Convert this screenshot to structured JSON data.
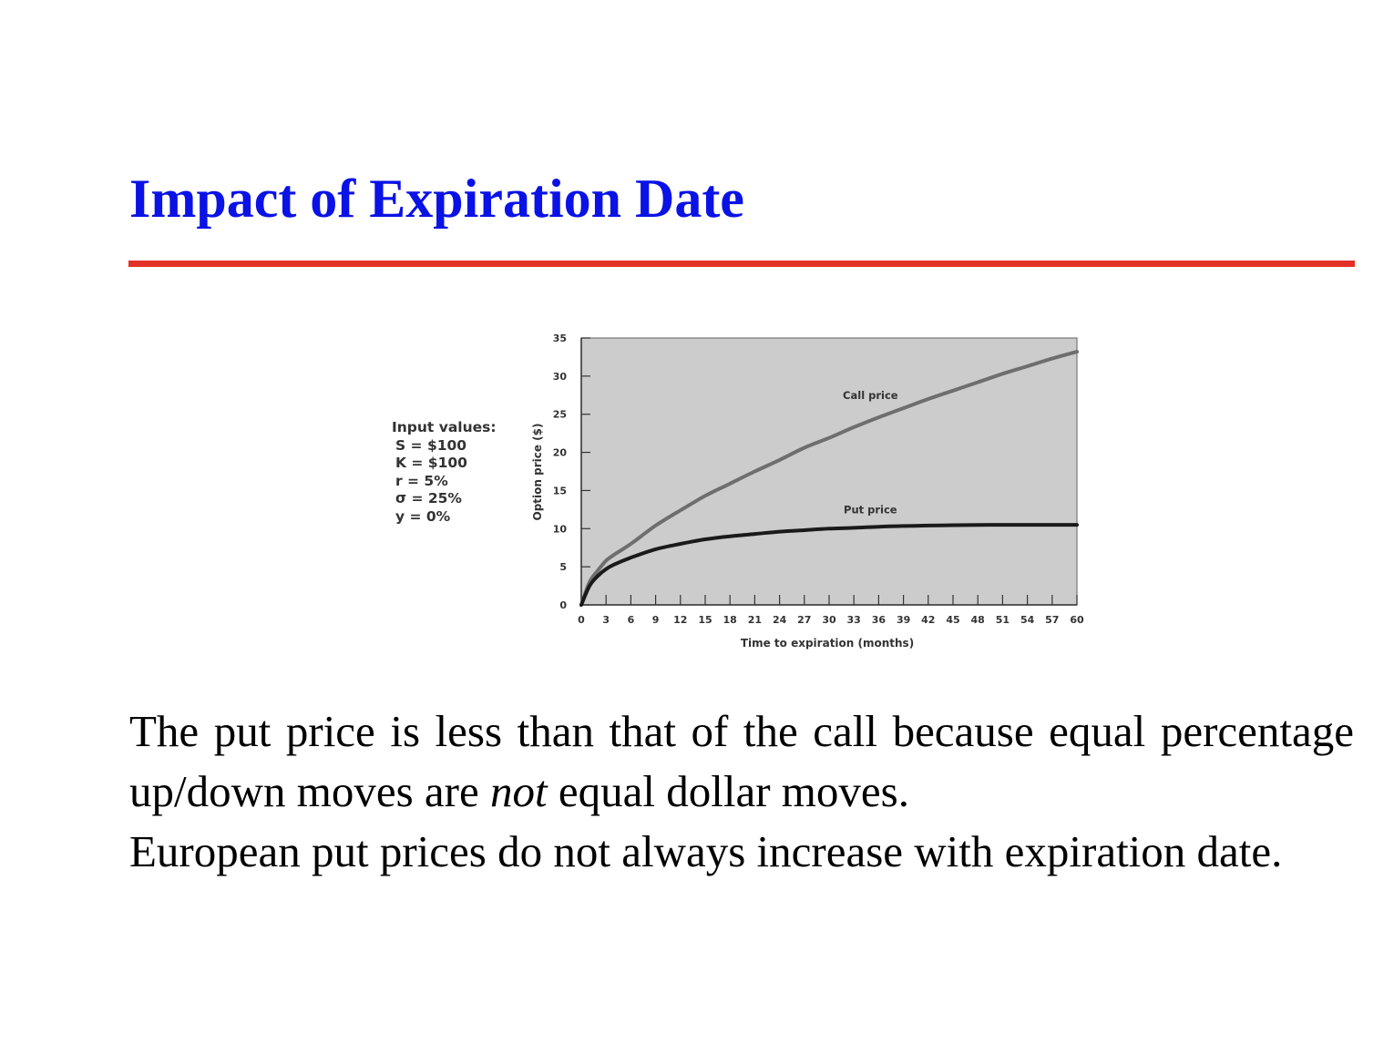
{
  "slide": {
    "title": "Impact of Expiration Date",
    "accent_colors": {
      "title": "#0a12e6",
      "rule": "#e33127"
    }
  },
  "inputs": {
    "heading": "Input values:",
    "lines": [
      "S = $100",
      "K = $100",
      "r = 5%",
      "σ = 25%",
      "y = 0%"
    ]
  },
  "chart_data": {
    "type": "line",
    "title": "",
    "xlabel": "Time to expiration (months)",
    "ylabel": "Option price ($)",
    "xlim": [
      0,
      60
    ],
    "ylim": [
      0,
      35
    ],
    "x_ticks": [
      0,
      3,
      6,
      9,
      12,
      15,
      18,
      21,
      24,
      27,
      30,
      33,
      36,
      39,
      42,
      45,
      48,
      51,
      54,
      57,
      60
    ],
    "y_ticks": [
      0,
      5,
      10,
      15,
      20,
      25,
      30,
      35
    ],
    "grid": false,
    "background": "#cccccc",
    "series": [
      {
        "name": "Call price",
        "color": "#6e6e6e",
        "x": [
          0,
          1,
          2,
          3,
          4,
          6,
          9,
          12,
          15,
          18,
          21,
          24,
          27,
          30,
          33,
          36,
          39,
          42,
          45,
          48,
          51,
          54,
          57,
          60
        ],
        "y": [
          0,
          3.0,
          4.5,
          5.8,
          6.6,
          8.0,
          10.4,
          12.4,
          14.3,
          15.9,
          17.5,
          19.0,
          20.6,
          21.9,
          23.3,
          24.6,
          25.8,
          27.0,
          28.1,
          29.2,
          30.3,
          31.3,
          32.3,
          33.2
        ]
      },
      {
        "name": "Put price",
        "color": "#1a1a1a",
        "x": [
          0,
          1,
          2,
          3,
          4,
          6,
          9,
          12,
          15,
          18,
          21,
          24,
          27,
          30,
          33,
          36,
          39,
          42,
          45,
          48,
          51,
          54,
          57,
          60
        ],
        "y": [
          0,
          2.5,
          3.8,
          4.7,
          5.3,
          6.2,
          7.3,
          8.0,
          8.6,
          9.0,
          9.3,
          9.6,
          9.8,
          10.0,
          10.1,
          10.25,
          10.35,
          10.4,
          10.45,
          10.48,
          10.5,
          10.5,
          10.5,
          10.5
        ]
      }
    ],
    "annotations": [
      {
        "text": "Call price",
        "x": 35,
        "y": 27
      },
      {
        "text": "Put price",
        "x": 35,
        "y": 12
      }
    ]
  },
  "body": {
    "p1_before": "The put price is less than that of the call because equal percentage up/down moves are ",
    "p1_emphasis": "not",
    "p1_after": " equal dollar moves.",
    "p2": "European put prices do not always increase with expiration date."
  }
}
